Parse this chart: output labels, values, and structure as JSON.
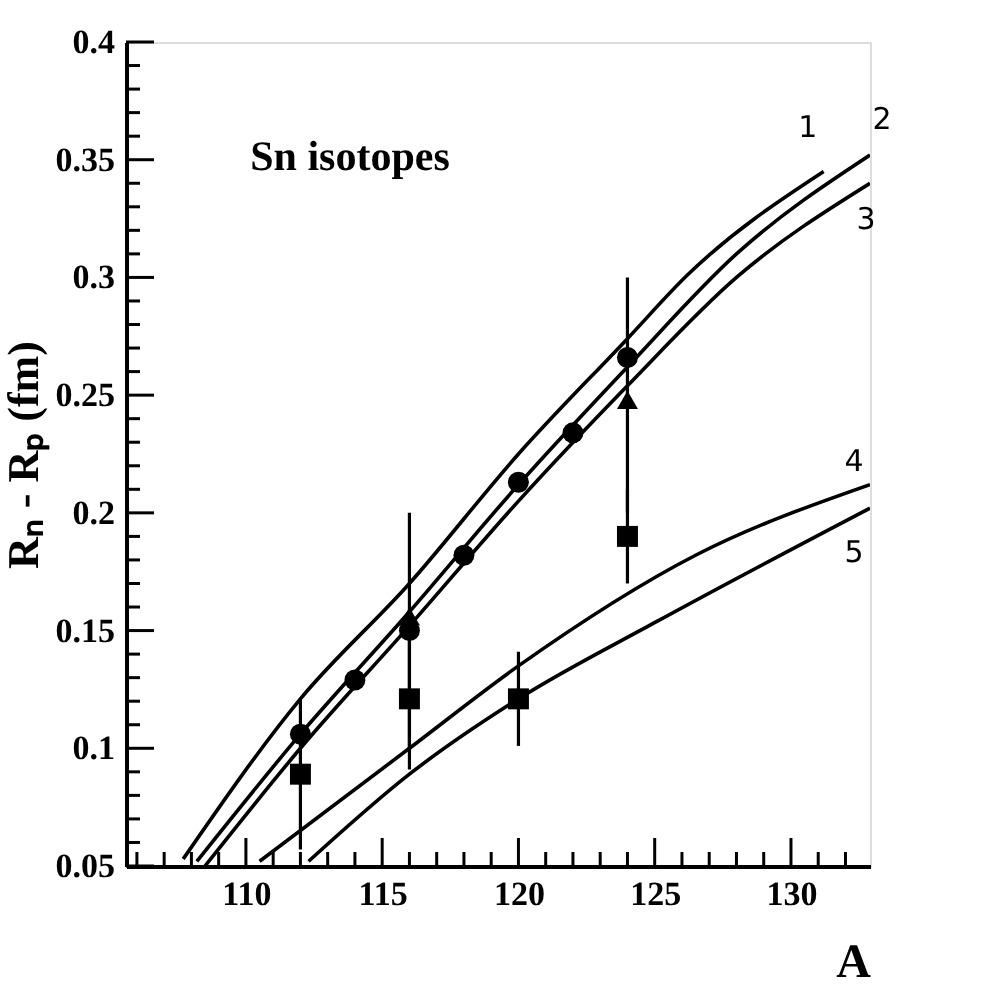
{
  "chart_data": {
    "type": "line",
    "title": "Sn isotopes",
    "xlabel": "A",
    "ylabel": "Rₙ - Rₚ (fm)",
    "xlim": [
      105.6,
      132.9
    ],
    "ylim": [
      0.05,
      0.4
    ],
    "xticks": [
      {
        "value": 106,
        "label": null
      },
      {
        "value": 107,
        "label": null
      },
      {
        "value": 108,
        "label": null
      },
      {
        "value": 109,
        "label": null
      },
      110,
      {
        "value": 111,
        "label": null
      },
      {
        "value": 112,
        "label": null
      },
      {
        "value": 113,
        "label": null
      },
      {
        "value": 114,
        "label": null
      },
      115,
      {
        "value": 116,
        "label": null
      },
      {
        "value": 117,
        "label": null
      },
      {
        "value": 118,
        "label": null
      },
      {
        "value": 119,
        "label": null
      },
      120,
      {
        "value": 121,
        "label": null
      },
      {
        "value": 122,
        "label": null
      },
      {
        "value": 123,
        "label": null
      },
      {
        "value": 124,
        "label": null
      },
      125,
      {
        "value": 126,
        "label": null
      },
      {
        "value": 127,
        "label": null
      },
      {
        "value": 128,
        "label": null
      },
      {
        "value": 129,
        "label": null
      },
      130,
      {
        "value": 131,
        "label": null
      },
      {
        "value": 132,
        "label": null
      }
    ],
    "yticks": [
      0.05,
      {
        "value": 0.06,
        "label": null
      },
      {
        "value": 0.07,
        "label": null
      },
      {
        "value": 0.08,
        "label": null
      },
      {
        "value": 0.09,
        "label": null
      },
      0.1,
      {
        "value": 0.11,
        "label": null
      },
      {
        "value": 0.12,
        "label": null
      },
      {
        "value": 0.13,
        "label": null
      },
      {
        "value": 0.14,
        "label": null
      },
      0.15,
      {
        "value": 0.16,
        "label": null
      },
      {
        "value": 0.17,
        "label": null
      },
      {
        "value": 0.18,
        "label": null
      },
      {
        "value": 0.19,
        "label": null
      },
      0.2,
      {
        "value": 0.21,
        "label": null
      },
      {
        "value": 0.22,
        "label": null
      },
      {
        "value": 0.23,
        "label": null
      },
      {
        "value": 0.24,
        "label": null
      },
      0.25,
      {
        "value": 0.26,
        "label": null
      },
      {
        "value": 0.27,
        "label": null
      },
      {
        "value": 0.28,
        "label": null
      },
      {
        "value": 0.29,
        "label": null
      },
      0.3,
      {
        "value": 0.31,
        "label": null
      },
      {
        "value": 0.32,
        "label": null
      },
      {
        "value": 0.33,
        "label": null
      },
      {
        "value": 0.34,
        "label": null
      },
      0.35,
      {
        "value": 0.36,
        "label": null
      },
      {
        "value": 0.37,
        "label": null
      },
      {
        "value": 0.38,
        "label": null
      },
      {
        "value": 0.39,
        "label": null
      },
      0.4
    ],
    "grid": false,
    "line_style": "solid",
    "series": [
      {
        "name": "1",
        "color": "#000000",
        "marker": "none",
        "x": [
          107.7,
          112,
          116,
          120,
          124,
          126.2,
          131.2
        ],
        "values": [
          0.053,
          0.121,
          0.17,
          0.225,
          0.274,
          0.301,
          0.345
        ]
      },
      {
        "name": "2",
        "color": "#000000",
        "marker": "none",
        "x": [
          108.2,
          112,
          116,
          120,
          124,
          128,
          132.9
        ],
        "values": [
          0.052,
          0.106,
          0.158,
          0.212,
          0.262,
          0.31,
          0.352
        ]
      },
      {
        "name": "3",
        "color": "#000000",
        "marker": "none",
        "x": [
          108.5,
          112,
          116,
          120,
          124,
          128,
          132.9
        ],
        "values": [
          0.05,
          0.1,
          0.152,
          0.205,
          0.254,
          0.3,
          0.34
        ]
      },
      {
        "name": "4",
        "color": "#000000",
        "marker": "none",
        "x": [
          110.5,
          116,
          120,
          126.5,
          132.9
        ],
        "values": [
          0.052,
          0.1,
          0.135,
          0.182,
          0.212
        ]
      },
      {
        "name": "5",
        "color": "#000000",
        "marker": "none",
        "x": [
          112.3,
          116,
          120,
          125.1,
          132.9
        ],
        "values": [
          0.052,
          0.089,
          0.121,
          0.154,
          0.202
        ]
      },
      {
        "type": "scatter",
        "color": "#000000",
        "marker": "circle",
        "x": [
          112,
          114,
          116,
          118,
          120,
          122,
          124
        ],
        "values": [
          0.106,
          0.129,
          0.15,
          0.182,
          0.213,
          0.234,
          0.266
        ]
      },
      {
        "type": "scatter",
        "color": "#000000",
        "marker": "triangle",
        "x": [
          116,
          124
        ],
        "values": [
          0.156,
          0.248
        ],
        "errors": [
          [
            0.1,
            0.2
          ],
          [
            0.2,
            0.3
          ]
        ]
      },
      {
        "type": "scatter",
        "color": "#000000",
        "marker": "square",
        "x": [
          112,
          116,
          120,
          124
        ],
        "values": [
          0.089,
          0.121,
          0.121,
          0.19
        ],
        "errors": [
          0.032,
          0.03,
          0.02,
          0.02
        ]
      }
    ]
  }
}
